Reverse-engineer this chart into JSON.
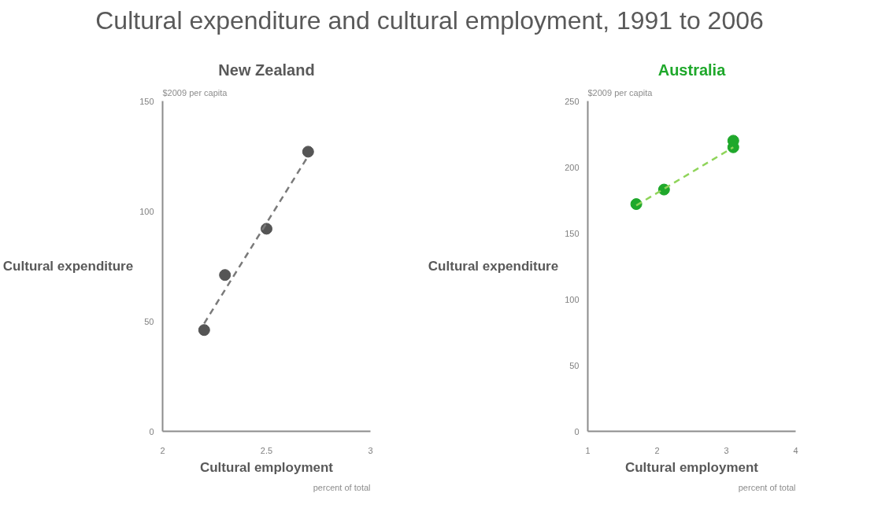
{
  "chart_data": [
    {
      "type": "scatter",
      "title": "Cultural expenditure and cultural employment, 1991 to 2006",
      "subtitle": "New Zealand",
      "xlabel": "Cultural employment",
      "ylabel": "Cultural expenditure",
      "annotations": [
        "$2009 per capita",
        "percent of total"
      ],
      "xlim": [
        2,
        3
      ],
      "xticks": [
        2,
        2.5,
        3
      ],
      "ylim": [
        0,
        150
      ],
      "yticks": [
        0,
        50,
        100,
        150
      ],
      "grid": false,
      "series": [
        {
          "marker": "circle",
          "color": "#555555",
          "x": [
            2.2,
            2.3,
            2.5,
            2.7
          ],
          "values": [
            46,
            71,
            92,
            127
          ]
        },
        {
          "type": "line",
          "line_style": "dashed",
          "color": "#7a7a7a",
          "x": [
            2.2,
            2.7
          ],
          "values": [
            49,
            125
          ]
        }
      ]
    },
    {
      "type": "scatter",
      "title": "Australia",
      "xlabel": "Cultural employment",
      "ylabel": "Cultural expenditure",
      "annotations": [
        "$2009 per capita",
        "percent of total"
      ],
      "xlim": [
        1,
        4
      ],
      "xticks": [
        1,
        2,
        3,
        4
      ],
      "ylim": [
        0,
        250
      ],
      "yticks": [
        0,
        50,
        100,
        150,
        200,
        250
      ],
      "grid": false,
      "series": [
        {
          "marker": "circle",
          "color": "#1fa82b",
          "x": [
            1.7,
            2.1,
            3.1,
            3.1
          ],
          "values": [
            172,
            183,
            220,
            215
          ]
        },
        {
          "type": "line",
          "line_style": "dashed",
          "color": "#8fd45a",
          "x": [
            1.7,
            3.1
          ],
          "values": [
            171,
            215
          ]
        }
      ]
    }
  ]
}
